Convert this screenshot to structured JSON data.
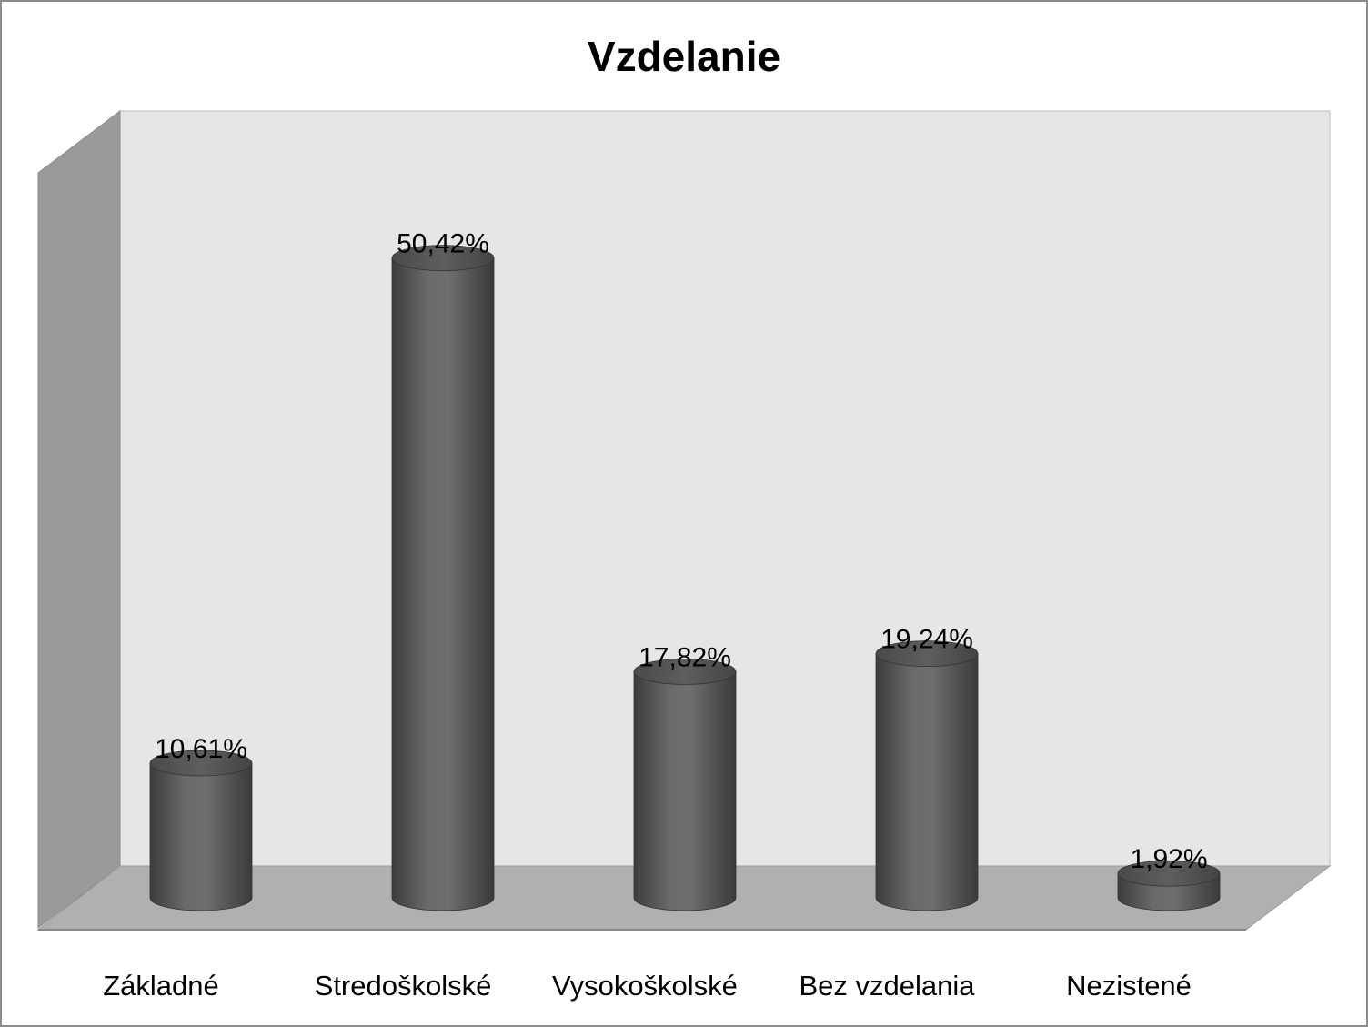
{
  "chart_data": {
    "type": "bar",
    "style": "3d-cylinder",
    "title": "Vzdelanie",
    "xlabel": "",
    "ylabel": "",
    "categories": [
      "Základné",
      "Stredoškolské",
      "Vysokoškolské",
      "Bez vzdelania",
      "Nezistené"
    ],
    "values": [
      10.61,
      50.42,
      17.82,
      19.24,
      1.92
    ],
    "data_labels": [
      "10,61%",
      "50,42%",
      "17,82%",
      "19,24%",
      "1,92%"
    ],
    "unit": "%",
    "ylim": [
      0,
      60
    ],
    "grid": false,
    "legend": "none",
    "colors": {
      "bar": "#5a5a5a",
      "back_wall": "#e6e6e6",
      "side_wall": "#9a9a9a",
      "floor": "#b0b0b0"
    }
  }
}
